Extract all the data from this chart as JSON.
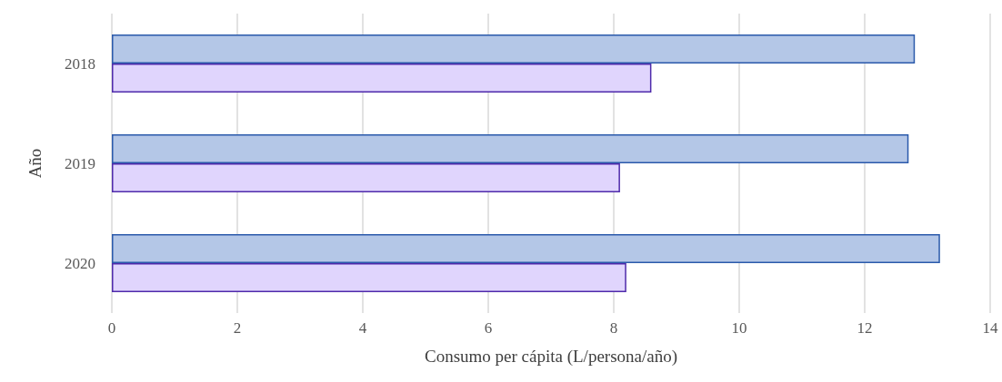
{
  "chart_data": {
    "type": "bar",
    "orientation": "horizontal",
    "xlabel": "Consumo per cápita (L/persona/año)",
    "ylabel": "Año",
    "categories": [
      "2018",
      "2019",
      "2020"
    ],
    "series": [
      {
        "color": "#b4c7e7",
        "values": [
          12.8,
          12.7,
          13.2
        ]
      },
      {
        "color": "#e0d5fd",
        "values": [
          8.6,
          8.1,
          8.2
        ]
      }
    ],
    "xlim": [
      0,
      14
    ],
    "xticks": [
      0,
      2,
      4,
      6,
      8,
      10,
      12,
      14
    ],
    "grid": "x"
  }
}
